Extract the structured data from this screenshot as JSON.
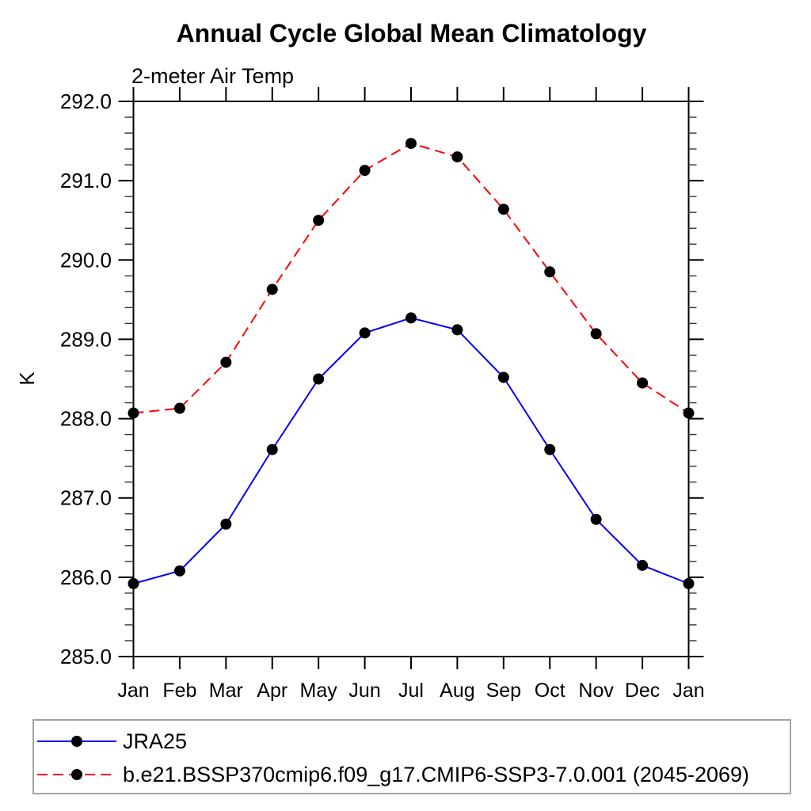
{
  "chart_data": {
    "type": "line",
    "title": "Annual Cycle Global Mean Climatology",
    "subtitle": "2-meter Air Temp",
    "ylabel": "K",
    "x_categories": [
      "Jan",
      "Feb",
      "Mar",
      "Apr",
      "May",
      "Jun",
      "Jul",
      "Aug",
      "Sep",
      "Oct",
      "Nov",
      "Dec",
      "Jan"
    ],
    "ylim": [
      285.0,
      292.0
    ],
    "y_major_step": 1.0,
    "y_minor_step": 0.2,
    "y_tick_labels": [
      "285.0",
      "286.0",
      "287.0",
      "288.0",
      "289.0",
      "290.0",
      "291.0",
      "292.0"
    ],
    "grid": false,
    "legend_position": "bottom box, below x-axis",
    "series": [
      {
        "name": "JRA25",
        "color": "#0000ff",
        "line_style": "solid",
        "marker": "filled-circle",
        "marker_color": "#000000",
        "values": [
          285.92,
          286.08,
          286.67,
          287.61,
          288.5,
          289.08,
          289.27,
          289.12,
          288.52,
          287.61,
          286.73,
          286.15,
          285.92
        ]
      },
      {
        "name": "b.e21.BSSP370cmip6.f09_g17.CMIP6-SSP3-7.0.001 (2045-2069)",
        "color": "#ff0000",
        "line_style": "dashed",
        "marker": "filled-circle",
        "marker_color": "#000000",
        "values": [
          288.07,
          288.13,
          288.71,
          289.63,
          290.5,
          291.13,
          291.47,
          291.3,
          290.64,
          289.85,
          289.07,
          288.45,
          288.07
        ]
      }
    ],
    "style": {
      "background": "#ffffff",
      "axis_color": "#000000",
      "minor_tick_color": "#333333",
      "legend_border_color": "#a3a3a3",
      "tick_direction": "outward, ticks mirrored on all four box sides"
    }
  }
}
